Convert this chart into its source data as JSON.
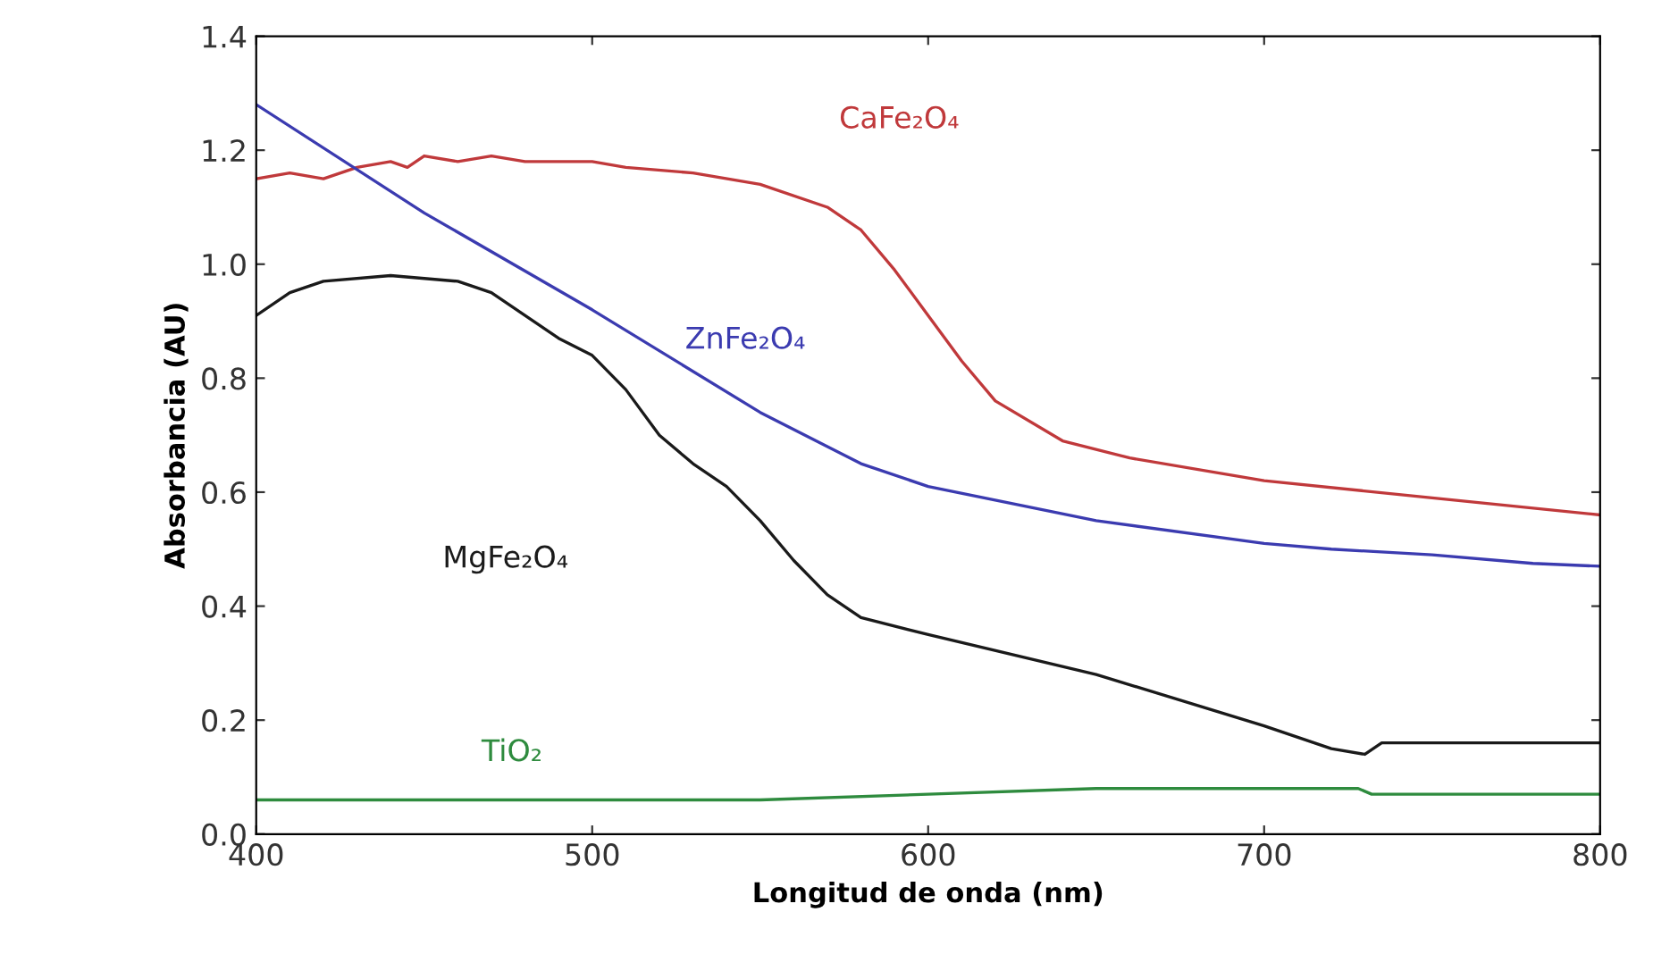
{
  "chart_data": {
    "type": "line",
    "xlabel": "Longitud de onda (nm)",
    "ylabel": "Absorbancia (AU)",
    "xlim": [
      400,
      800
    ],
    "xticks": [
      400,
      500,
      600,
      700,
      800
    ],
    "ylim": [
      0,
      1.4
    ],
    "yticks": [
      {
        "value": 0,
        "label": "0.0"
      },
      0.2,
      0.4,
      0.6,
      0.8,
      {
        "value": 1,
        "label": "1.0"
      },
      1.2,
      1.4
    ],
    "grid": false,
    "legend": false,
    "marker": "none",
    "line_style": "solid",
    "series": [
      {
        "name": "CaFe₂O₄",
        "color": "#c0393b",
        "x": [
          400,
          410,
          420,
          430,
          440,
          445,
          450,
          460,
          470,
          480,
          500,
          510,
          530,
          550,
          570,
          580,
          590,
          600,
          610,
          620,
          640,
          660,
          700,
          750,
          800
        ],
        "values": [
          1.15,
          1.16,
          1.15,
          1.17,
          1.18,
          1.17,
          1.19,
          1.18,
          1.19,
          1.18,
          1.18,
          1.17,
          1.16,
          1.14,
          1.1,
          1.06,
          0.99,
          0.91,
          0.83,
          0.76,
          0.69,
          0.66,
          0.62,
          0.59,
          0.56
        ]
      },
      {
        "name": "ZnFe₂O₄",
        "color": "#3b3bb0",
        "x": [
          400,
          450,
          500,
          550,
          580,
          600,
          650,
          700,
          720,
          750,
          780,
          800
        ],
        "values": [
          1.28,
          1.09,
          0.92,
          0.74,
          0.65,
          0.61,
          0.55,
          0.51,
          0.5,
          0.49,
          0.475,
          0.47
        ]
      },
      {
        "name": "MgFe₂O₄",
        "color": "#1a1a1a",
        "x": [
          400,
          410,
          420,
          440,
          460,
          470,
          480,
          490,
          500,
          510,
          520,
          530,
          540,
          550,
          560,
          570,
          580,
          600,
          650,
          700,
          720,
          730,
          735,
          750,
          800
        ],
        "values": [
          0.91,
          0.95,
          0.97,
          0.98,
          0.97,
          0.95,
          0.91,
          0.87,
          0.84,
          0.78,
          0.7,
          0.65,
          0.61,
          0.55,
          0.48,
          0.42,
          0.38,
          0.35,
          0.28,
          0.19,
          0.15,
          0.14,
          0.16,
          0.16,
          0.16
        ]
      },
      {
        "name": "TiO₂",
        "color": "#2e8b3e",
        "x": [
          400,
          550,
          600,
          650,
          700,
          728,
          732,
          800
        ],
        "values": [
          0.06,
          0.06,
          0.07,
          0.08,
          0.08,
          0.08,
          0.07,
          0.07
        ]
      }
    ]
  }
}
